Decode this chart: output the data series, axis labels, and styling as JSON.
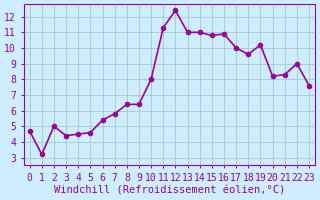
{
  "x": [
    0,
    1,
    2,
    3,
    4,
    5,
    6,
    7,
    8,
    9,
    10,
    11,
    12,
    13,
    14,
    15,
    16,
    17,
    18,
    19,
    20,
    21,
    22,
    23
  ],
  "y": [
    4.7,
    3.2,
    5.0,
    4.4,
    4.5,
    4.6,
    5.4,
    5.8,
    6.4,
    6.4,
    8.0,
    11.3,
    12.4,
    11.0,
    11.0,
    10.8,
    10.9,
    10.0,
    9.6,
    10.2,
    8.2,
    8.3,
    9.0,
    7.6
  ],
  "line_color": "#990099",
  "marker": "o",
  "markersize": 3,
  "linewidth": 1.2,
  "bg_color": "#cceeff",
  "grid_color": "#aacccc",
  "xlabel": "Windchill (Refroidissement éolien,°C)",
  "ylabel": "",
  "xlim": [
    -0.5,
    23.5
  ],
  "ylim": [
    2.5,
    12.8
  ],
  "xticks": [
    0,
    1,
    2,
    3,
    4,
    5,
    6,
    7,
    8,
    9,
    10,
    11,
    12,
    13,
    14,
    15,
    16,
    17,
    18,
    19,
    20,
    21,
    22,
    23
  ],
  "yticks": [
    3,
    4,
    5,
    6,
    7,
    8,
    9,
    10,
    11,
    12
  ],
  "tick_color": "#990099",
  "tick_fontsize": 7,
  "xlabel_fontsize": 7.5,
  "axis_color": "#990099"
}
